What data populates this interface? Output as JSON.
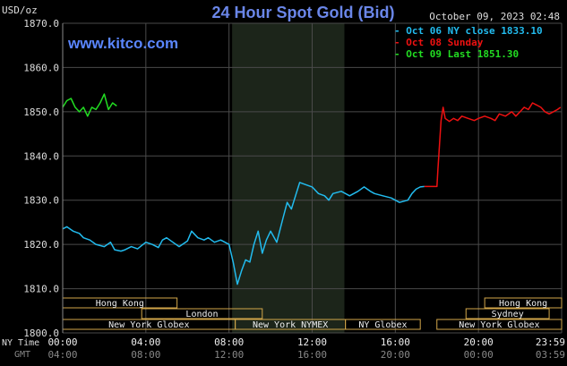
{
  "chart_data": {
    "type": "line",
    "title": "24 Hour Spot Gold (Bid)",
    "website": "www.kitco.com",
    "datetime": "October 09, 2023 02:48",
    "ylabel": "USD/oz",
    "ylim": [
      1800,
      1870
    ],
    "yticks": [
      "1870.0",
      "1860.0",
      "1850.0",
      "1840.0",
      "1830.0",
      "1820.0",
      "1810.0",
      "1800.0"
    ],
    "xlim": [
      0,
      24
    ],
    "x_axis_ny_label": "NY Time",
    "x_axis_gmt_label": "GMT",
    "xticks_ny": [
      "00:00",
      "04:00",
      "08:00",
      "12:00",
      "16:00",
      "20:00",
      "23:59"
    ],
    "xticks_gmt": [
      "04:00",
      "08:00",
      "12:00",
      "16:00",
      "20:00",
      "00:00",
      "03:59"
    ],
    "grid": true,
    "legend_position": "top-right",
    "series": [
      {
        "name": "Oct 06 NY close 1833.10",
        "color": "#22bbee",
        "x": [
          0,
          0.2,
          0.5,
          0.8,
          1.0,
          1.3,
          1.6,
          2.0,
          2.3,
          2.5,
          2.8,
          3.0,
          3.3,
          3.6,
          4.0,
          4.3,
          4.6,
          4.8,
          5.0,
          5.3,
          5.6,
          6.0,
          6.2,
          6.5,
          6.8,
          7.0,
          7.3,
          7.6,
          8.0,
          8.2,
          8.4,
          8.6,
          8.8,
          9.0,
          9.2,
          9.4,
          9.6,
          9.8,
          10.0,
          10.3,
          10.6,
          10.8,
          11.0,
          11.2,
          11.4,
          11.7,
          12.0,
          12.3,
          12.6,
          12.8,
          13.0,
          13.4,
          13.8,
          14.2,
          14.5,
          14.8,
          15.0,
          15.4,
          15.8,
          16.2,
          16.6,
          16.8,
          17.0,
          17.2,
          17.4
        ],
        "y": [
          1823.5,
          1824.0,
          1823.0,
          1822.5,
          1821.5,
          1821.0,
          1820.0,
          1819.5,
          1820.5,
          1818.8,
          1818.5,
          1818.8,
          1819.5,
          1819.0,
          1820.5,
          1820.0,
          1819.3,
          1821.0,
          1821.5,
          1820.5,
          1819.5,
          1820.8,
          1823.0,
          1821.5,
          1821.0,
          1821.5,
          1820.5,
          1821.0,
          1820.0,
          1816.0,
          1811.0,
          1814.0,
          1816.5,
          1816.0,
          1820.0,
          1823.0,
          1818.0,
          1821.0,
          1823.0,
          1820.5,
          1826.0,
          1829.5,
          1828.0,
          1831.0,
          1834.0,
          1833.5,
          1833.0,
          1831.5,
          1831.0,
          1830.0,
          1831.5,
          1832.0,
          1831.0,
          1832.0,
          1833.0,
          1832.0,
          1831.5,
          1831.0,
          1830.5,
          1829.5,
          1830.0,
          1831.5,
          1832.5,
          1833.0,
          1833.1
        ]
      },
      {
        "name": "Oct 08 Sunday",
        "color": "#ee1111",
        "x": [
          17.4,
          17.8,
          18.0,
          18.05,
          18.2,
          18.3,
          18.4,
          18.6,
          18.8,
          19.0,
          19.2,
          19.5,
          19.8,
          20.0,
          20.3,
          20.6,
          20.8,
          21.0,
          21.3,
          21.6,
          21.8,
          22.0,
          22.2,
          22.4,
          22.6,
          22.8,
          23.0,
          23.2,
          23.4,
          23.6,
          23.8,
          23.95
        ],
        "y": [
          1833.1,
          1833.1,
          1833.1,
          1837.0,
          1848.0,
          1851.0,
          1848.5,
          1847.8,
          1848.5,
          1848.0,
          1849.0,
          1848.5,
          1848.0,
          1848.5,
          1849.0,
          1848.5,
          1848.0,
          1849.5,
          1849.0,
          1850.0,
          1849.0,
          1850.0,
          1851.0,
          1850.5,
          1852.0,
          1851.5,
          1851.0,
          1850.0,
          1849.5,
          1850.0,
          1850.5,
          1851.0
        ]
      },
      {
        "name": "Oct 09 Last 1851.30",
        "color": "#22dd22",
        "x": [
          0,
          0.2,
          0.4,
          0.6,
          0.8,
          1.0,
          1.2,
          1.4,
          1.6,
          1.8,
          2.0,
          2.2,
          2.4,
          2.6
        ],
        "y": [
          1851.0,
          1852.5,
          1853.0,
          1851.0,
          1850.0,
          1851.0,
          1849.0,
          1851.0,
          1850.5,
          1852.0,
          1854.0,
          1850.5,
          1852.0,
          1851.3
        ]
      }
    ],
    "shaded_region": [
      8.15,
      13.55
    ],
    "sessions_top": [
      {
        "label": "Hong Kong",
        "start": 0,
        "end": 5.5
      },
      {
        "label": "Hong Kong",
        "start": 20.3,
        "end": 24
      }
    ],
    "sessions_mid": [
      {
        "label": "London",
        "start": 3.8,
        "end": 9.6
      },
      {
        "label": "Sydney",
        "start": 19.4,
        "end": 23.4
      }
    ],
    "sessions_bot": [
      {
        "label": "New York Globex",
        "start": 0,
        "end": 8.3
      },
      {
        "label": "New York NYMEX",
        "start": 8.3,
        "end": 13.6
      },
      {
        "label": "NY Globex",
        "start": 13.6,
        "end": 17.2
      },
      {
        "label": "New York Globex",
        "start": 18.0,
        "end": 24
      }
    ]
  }
}
